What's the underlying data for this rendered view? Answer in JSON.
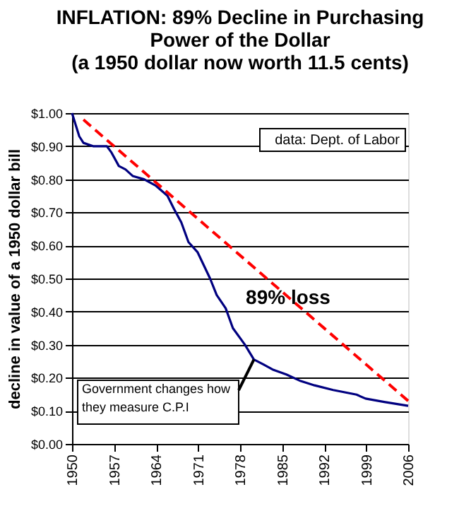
{
  "chart_data": {
    "type": "line",
    "title": [
      "INFLATION: 89% Decline in Purchasing",
      "Power of the Dollar",
      "(a 1950 dollar now worth 11.5 cents)"
    ],
    "ylabel": "decline in value of a 1950 dollar bill",
    "annotations": [
      "data: Dept. of Labor",
      {
        "text": "89% loss",
        "x": 1986,
        "y": 0.44
      },
      {
        "text": "Government changes how they measure C.P.I",
        "x": 1980.3,
        "y": 0.255
      }
    ],
    "series": [
      {
        "color": "#000080",
        "line_style": "solid",
        "x": [
          1950,
          1951.2,
          1951.9,
          1953.5,
          1955.8,
          1956.6,
          1957.8,
          1958.9,
          1960.1,
          1962,
          1964,
          1965.9,
          1967,
          1968.2,
          1969.4,
          1970.9,
          1973.0,
          1974.1,
          1975.6,
          1976.8,
          1978.8,
          1980.3,
          1981.9,
          1983.4,
          1985.7,
          1988.1,
          1990.4,
          1993.5,
          1997.4,
          1998.9,
          2002.0,
          2006
        ],
        "values": [
          1.0,
          0.93,
          0.91,
          0.9,
          0.9,
          0.88,
          0.84,
          0.83,
          0.81,
          0.8,
          0.78,
          0.75,
          0.71,
          0.67,
          0.61,
          0.58,
          0.5,
          0.45,
          0.41,
          0.35,
          0.3,
          0.255,
          0.24,
          0.225,
          0.21,
          0.19,
          0.177,
          0.163,
          0.149,
          0.137,
          0.127,
          0.115
        ]
      },
      {
        "type": "line",
        "color": "#ff0000",
        "line_style": "dashed",
        "x": [
          1951.9,
          2006
        ],
        "values": [
          0.98,
          0.13
        ]
      }
    ],
    "xlim": [
      1950,
      2006
    ],
    "xticks": [
      1950,
      1957,
      1964,
      1971,
      1978,
      1985,
      1992,
      1999,
      2006
    ],
    "ylim": [
      0,
      1
    ],
    "yticks": [
      {
        "value": 0,
        "label": "$0.00"
      },
      {
        "value": 0.1,
        "label": "$0.10"
      },
      {
        "value": 0.2,
        "label": "$0.20"
      },
      {
        "value": 0.3,
        "label": "$0.30"
      },
      {
        "value": 0.4,
        "label": "$0.40"
      },
      {
        "value": 0.5,
        "label": "$0.50"
      },
      {
        "value": 0.6,
        "label": "$0.60"
      },
      {
        "value": 0.7,
        "label": "$0.70"
      },
      {
        "value": 0.8,
        "label": "$0.80"
      },
      {
        "value": 0.9,
        "label": "$0.90"
      },
      {
        "value": 1,
        "label": "$1.00"
      }
    ],
    "grid": "y"
  }
}
